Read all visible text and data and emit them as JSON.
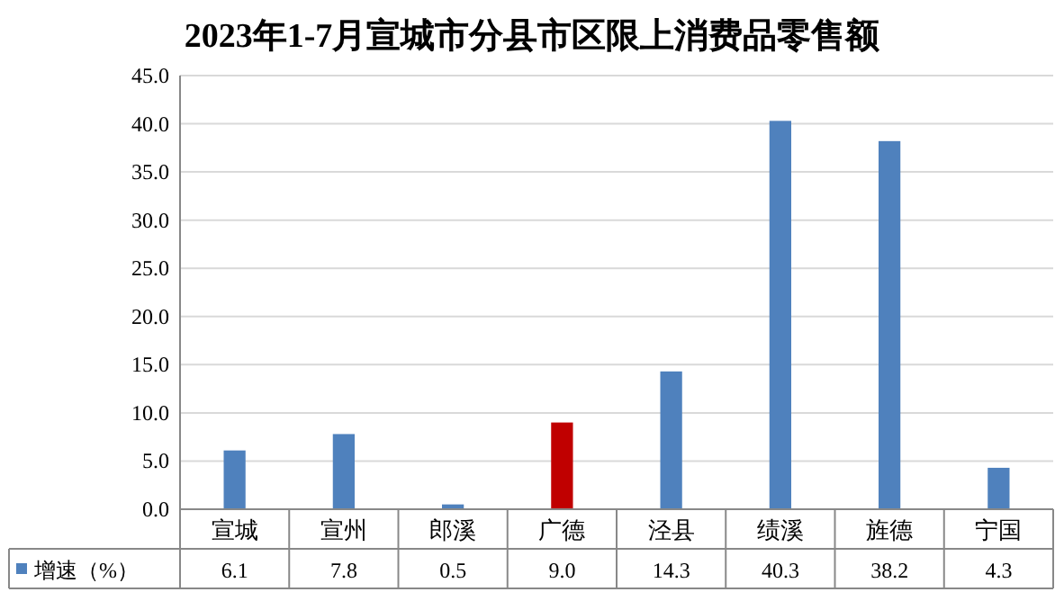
{
  "chart_data": {
    "type": "bar",
    "title": "2023年1-7月宣城市分县市区限上消费品零售额",
    "categories": [
      "宣城",
      "宣州",
      "郎溪",
      "广德",
      "泾县",
      "绩溪",
      "旌德",
      "宁国"
    ],
    "series": [
      {
        "name": "增速（%）",
        "color": "#4f81bd",
        "colors": [
          "#4f81bd",
          "#4f81bd",
          "#4f81bd",
          "#c00000",
          "#4f81bd",
          "#4f81bd",
          "#4f81bd",
          "#4f81bd"
        ],
        "values": [
          6.1,
          7.8,
          0.5,
          9.0,
          14.3,
          40.3,
          38.2,
          4.3
        ]
      }
    ],
    "value_labels": [
      "6.1",
      "7.8",
      "0.5",
      "9.0",
      "14.3",
      "40.3",
      "38.2",
      "4.3"
    ],
    "ylim": [
      0,
      45
    ],
    "yticks": [
      {
        "value": 0,
        "label": "0.0"
      },
      {
        "value": 5,
        "label": "5.0"
      },
      {
        "value": 10,
        "label": "10.0"
      },
      {
        "value": 15,
        "label": "15.0"
      },
      {
        "value": 20,
        "label": "20.0"
      },
      {
        "value": 25,
        "label": "25.0"
      },
      {
        "value": 30,
        "label": "30.0"
      },
      {
        "value": 35,
        "label": "35.0"
      },
      {
        "value": 40,
        "label": "40.0"
      },
      {
        "value": 45,
        "label": "45.0"
      }
    ],
    "grid": "y",
    "legend": "bottom"
  }
}
